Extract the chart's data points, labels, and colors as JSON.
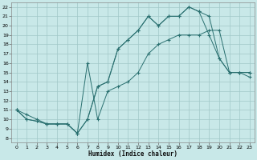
{
  "bg_color": "#c8e8e8",
  "grid_color": "#a0c8c8",
  "line_color": "#2a7070",
  "xlabel": "Humidex (Indice chaleur)",
  "xlim": [
    -0.5,
    23.5
  ],
  "ylim": [
    7.5,
    22.5
  ],
  "xticks": [
    0,
    1,
    2,
    3,
    4,
    5,
    6,
    7,
    8,
    9,
    10,
    11,
    12,
    13,
    14,
    15,
    16,
    17,
    18,
    19,
    20,
    21,
    22,
    23
  ],
  "yticks": [
    8,
    9,
    10,
    11,
    12,
    13,
    14,
    15,
    16,
    17,
    18,
    19,
    20,
    21,
    22
  ],
  "curve1_x": [
    0,
    1,
    2,
    3,
    4,
    5,
    6,
    7,
    8,
    9,
    10,
    11,
    12,
    13,
    14,
    15,
    16,
    17,
    18,
    19,
    20,
    21,
    22,
    23
  ],
  "curve1_y": [
    11,
    10,
    9.8,
    9.5,
    9.5,
    9.5,
    8.5,
    10,
    13.5,
    14,
    17.5,
    18.5,
    19.5,
    21,
    20,
    21,
    21,
    22,
    21.5,
    21,
    16.5,
    15,
    15,
    15
  ],
  "curve2_x": [
    0,
    1,
    2,
    3,
    4,
    5,
    6,
    7,
    8,
    9,
    10,
    11,
    12,
    13,
    14,
    15,
    16,
    17,
    18,
    19,
    20,
    21,
    22,
    23
  ],
  "curve2_y": [
    11,
    10,
    9.8,
    9.5,
    9.5,
    9.5,
    8.5,
    10,
    13.5,
    14,
    17.5,
    18.5,
    19.5,
    21,
    20,
    21,
    21,
    22,
    21.5,
    19,
    16.5,
    15,
    15,
    15
  ],
  "curve3_x": [
    0,
    1,
    2,
    3,
    4,
    5,
    6,
    7,
    8,
    9,
    10,
    11,
    12,
    13,
    14,
    15,
    16,
    17,
    18,
    19,
    20,
    21,
    22,
    23
  ],
  "curve3_y": [
    11,
    10.5,
    10,
    9.5,
    9.5,
    9.5,
    8.5,
    16,
    10,
    13,
    13.5,
    14,
    15,
    17,
    18,
    18.5,
    19,
    19,
    19,
    19.5,
    19.5,
    15,
    15,
    14.5
  ]
}
